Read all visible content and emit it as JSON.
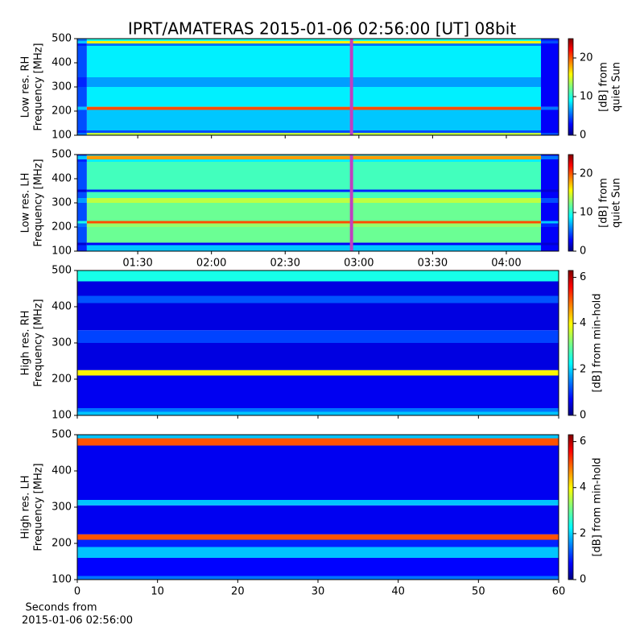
{
  "chart_data": [
    {
      "type": "heatmap",
      "title": "IPRT/AMATERAS 2015-01-06 02:56:00 [UT]   08bit",
      "ylabel": [
        "Low res. RH",
        "Frequency [MHz]"
      ],
      "ylim": [
        100,
        500
      ],
      "yticks": [
        100,
        200,
        300,
        400,
        500
      ],
      "x_edges": [
        65.4,
        69.3,
        254.1,
        261.3
      ],
      "y_edges": [
        100,
        110,
        120,
        205,
        218,
        300,
        340,
        470,
        480,
        490,
        500
      ],
      "z": [
        [
          6,
          14,
          5
        ],
        [
          4,
          5,
          3
        ],
        [
          5,
          8,
          3
        ],
        [
          8,
          20,
          6
        ],
        [
          5,
          9,
          3
        ],
        [
          4,
          7,
          3
        ],
        [
          5,
          9,
          3
        ],
        [
          4,
          6,
          3
        ],
        [
          8,
          16,
          5
        ],
        [
          6,
          10,
          4
        ]
      ],
      "marker_x": 177,
      "marker_color": "#c040c0",
      "clim": [
        0,
        25
      ],
      "cticks": [
        0,
        10,
        20
      ],
      "clabel": [
        "[dB] from",
        "quiet Sun"
      ]
    },
    {
      "type": "heatmap",
      "ylabel": [
        "Low res. LH",
        "Frequency [MHz]"
      ],
      "xlim": [
        65.4,
        261.3
      ],
      "xticks": [
        {
          "value": 90,
          "label": "01:30"
        },
        {
          "value": 120,
          "label": "02:00"
        },
        {
          "value": 150,
          "label": "02:30"
        },
        {
          "value": 180,
          "label": "03:00"
        },
        {
          "value": 210,
          "label": "03:30"
        },
        {
          "value": 240,
          "label": "04:00"
        }
      ],
      "ylim": [
        100,
        500
      ],
      "yticks": [
        100,
        200,
        300,
        400,
        500
      ],
      "x_edges": [
        65.4,
        69.3,
        254.1,
        261.3
      ],
      "y_edges": [
        100,
        125,
        135,
        200,
        215,
        225,
        300,
        320,
        345,
        355,
        470,
        480,
        495,
        500
      ],
      "z": [
        [
          4,
          8,
          3
        ],
        [
          2,
          3,
          2
        ],
        [
          5,
          12,
          3
        ],
        [
          6,
          13,
          4
        ],
        [
          10,
          20,
          8
        ],
        [
          5,
          12,
          3
        ],
        [
          7,
          14,
          5
        ],
        [
          5,
          11,
          3
        ],
        [
          2,
          4,
          2
        ],
        [
          5,
          11,
          3
        ],
        [
          4,
          9,
          3
        ],
        [
          8,
          18,
          6
        ],
        [
          4,
          8,
          3
        ]
      ],
      "marker_x": 177,
      "marker_color": "#c040c0",
      "clim": [
        0,
        25
      ],
      "cticks": [
        0,
        10,
        20
      ],
      "clabel": [
        "[dB] from",
        "quiet Sun"
      ]
    },
    {
      "type": "heatmap",
      "ylabel": [
        "High res. RH",
        "Frequency [MHz]"
      ],
      "ylim": [
        100,
        500
      ],
      "yticks": [
        100,
        200,
        300,
        400,
        500
      ],
      "x_edges": [
        0,
        60
      ],
      "y_edges": [
        100,
        110,
        120,
        210,
        225,
        300,
        335,
        410,
        430,
        470,
        500
      ],
      "z": [
        [
          2
        ],
        [
          1.5
        ],
        [
          0.7
        ],
        [
          4
        ],
        [
          0.6
        ],
        [
          1.2
        ],
        [
          0.6
        ],
        [
          1.3
        ],
        [
          0.6
        ],
        [
          2.5
        ]
      ],
      "clim": [
        0,
        6.3
      ],
      "cticks": [
        0,
        2,
        4,
        6
      ],
      "clabel": [
        "[dB] from min-hold"
      ]
    },
    {
      "type": "heatmap",
      "ylabel": [
        "High res. LH",
        "Frequency [MHz]"
      ],
      "xlabel": [
        "Seconds from",
        "2015-01-06 02:56:00"
      ],
      "xlim": [
        0,
        60
      ],
      "xticks": [
        0,
        10,
        20,
        30,
        40,
        50,
        60
      ],
      "ylim": [
        100,
        500
      ],
      "yticks": [
        100,
        200,
        300,
        400,
        500
      ],
      "x_edges": [
        0,
        60
      ],
      "y_edges": [
        100,
        110,
        160,
        190,
        210,
        225,
        305,
        320,
        470,
        490,
        500
      ],
      "z": [
        [
          1.5
        ],
        [
          0.8
        ],
        [
          2
        ],
        [
          1
        ],
        [
          5
        ],
        [
          0.7
        ],
        [
          2
        ],
        [
          0.7
        ],
        [
          5
        ],
        [
          2
        ]
      ],
      "clim": [
        0,
        6.3
      ],
      "cticks": [
        0,
        2,
        4,
        6
      ],
      "clabel": [
        "[dB] from min-hold"
      ]
    }
  ]
}
